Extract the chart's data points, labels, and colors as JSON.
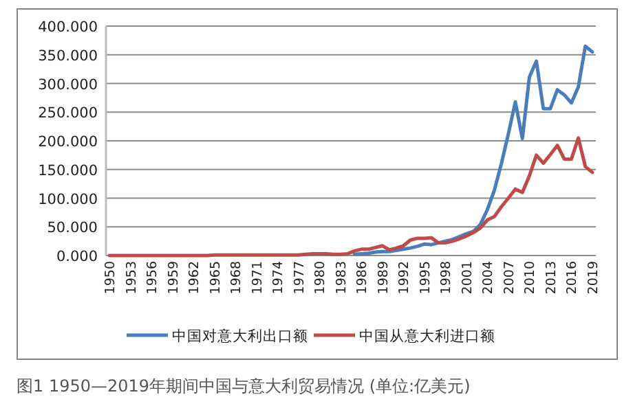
{
  "chart_data": {
    "type": "line",
    "categories": [
      "1950",
      null,
      null,
      "1953",
      null,
      null,
      "1956",
      null,
      null,
      "1959",
      null,
      null,
      "1962",
      null,
      null,
      "1965",
      null,
      null,
      "1968",
      null,
      null,
      "1971",
      null,
      null,
      "1974",
      null,
      null,
      "1977",
      null,
      null,
      "1980",
      null,
      null,
      "1983",
      null,
      null,
      "1986",
      null,
      null,
      "1989",
      null,
      null,
      "1992",
      null,
      null,
      "1995",
      null,
      null,
      "1998",
      null,
      null,
      "2001",
      null,
      null,
      "2004",
      null,
      null,
      "2007",
      null,
      null,
      "2010",
      null,
      null,
      "2013",
      null,
      null,
      "2016",
      null,
      null,
      "2019"
    ],
    "series": [
      {
        "name": "中国对意大利出口额",
        "color": "#4a7ebb",
        "values": [
          null,
          null,
          null,
          null,
          null,
          null,
          null,
          null,
          null,
          null,
          null,
          null,
          null,
          null,
          null,
          null,
          null,
          null,
          null,
          null,
          null,
          null,
          null,
          null,
          null,
          null,
          null,
          null,
          null,
          null,
          null,
          null,
          null,
          null,
          null,
          2,
          3,
          4,
          6,
          7,
          7,
          9,
          11,
          13,
          16,
          20,
          19,
          22,
          25,
          28,
          33,
          38,
          42,
          54,
          80,
          114,
          160,
          212,
          268,
          204,
          311,
          339,
          256,
          256,
          289,
          280,
          266,
          294,
          365,
          355
        ]
      },
      {
        "name": "中国从意大利进口额",
        "color": "#be4b48",
        "values": [
          0,
          0,
          0,
          0,
          0,
          0,
          0,
          0,
          0,
          0,
          0,
          0,
          0,
          0,
          0,
          1,
          1,
          1,
          1,
          1,
          1,
          1,
          1,
          1,
          1,
          1,
          1,
          1,
          2,
          3,
          3,
          3,
          2,
          2,
          3,
          8,
          11,
          11,
          14,
          17,
          10,
          13,
          17,
          27,
          30,
          30,
          31,
          22,
          22,
          25,
          29,
          34,
          40,
          48,
          62,
          68,
          85,
          100,
          116,
          110,
          139,
          175,
          161,
          176,
          192,
          168,
          168,
          205,
          155,
          145
        ]
      }
    ],
    "ylim": [
      0,
      400
    ],
    "yticks": [
      {
        "value": 0,
        "label": "0.000"
      },
      {
        "value": 50,
        "label": "50.000"
      },
      {
        "value": 100,
        "label": "100.000"
      },
      {
        "value": 150,
        "label": "150.000"
      },
      {
        "value": 200,
        "label": "200.000"
      },
      {
        "value": 250,
        "label": "250.000"
      },
      {
        "value": 300,
        "label": "300.000"
      },
      {
        "value": 350,
        "label": "350.000"
      },
      {
        "value": 400,
        "label": "400.000"
      }
    ],
    "grid": "y",
    "legend": "bottom",
    "marker": "none",
    "line_style": "solid",
    "annotations": [
      "图1  1950—2019年期间中国与意大利贸易情况 (单位:亿美元)"
    ]
  }
}
